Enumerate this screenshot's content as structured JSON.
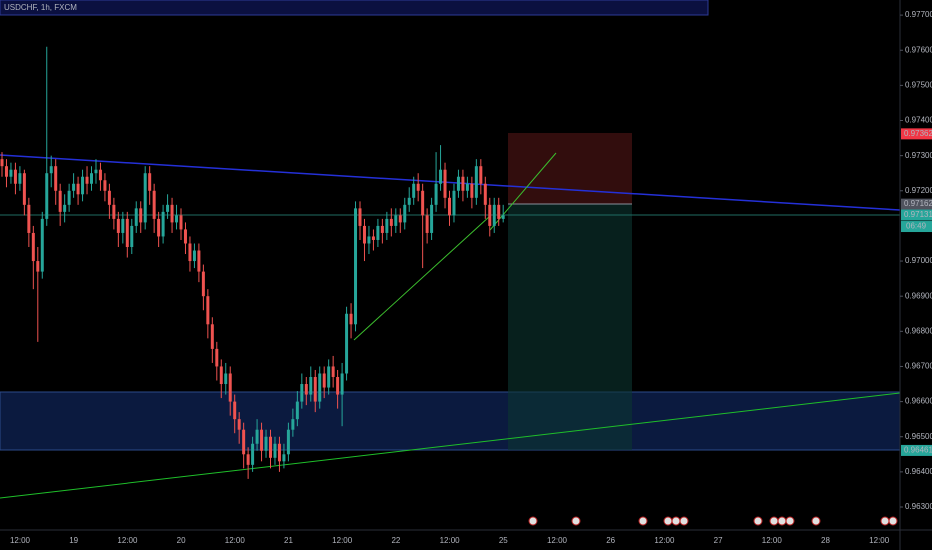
{
  "chart_data": {
    "type": "candlestick",
    "title": "USDCHF, 1h, FXCM",
    "ylim": [
      0.96263,
      0.97743
    ],
    "yticks": [
      {
        "value": 0.977,
        "label": "0.97700"
      },
      {
        "value": 0.976,
        "label": "0.97600"
      },
      {
        "value": 0.975,
        "label": "0.97500"
      },
      {
        "value": 0.974,
        "label": "0.97400"
      },
      {
        "value": 0.973,
        "label": "0.97300"
      },
      {
        "value": 0.972,
        "label": "0.97200"
      },
      {
        "value": 0.97,
        "label": "0.97000"
      },
      {
        "value": 0.969,
        "label": "0.96900"
      },
      {
        "value": 0.968,
        "label": "0.96800"
      },
      {
        "value": 0.967,
        "label": "0.96700"
      },
      {
        "value": 0.966,
        "label": "0.96600"
      },
      {
        "value": 0.965,
        "label": "0.96500"
      },
      {
        "value": 0.964,
        "label": "0.96400"
      },
      {
        "value": 0.963,
        "label": "0.96300"
      }
    ],
    "categories": [
      "12:00",
      "19",
      "12:00",
      "20",
      "12:00",
      "21",
      "12:00",
      "22",
      "12:00",
      "25",
      "12:00",
      "26",
      "12:00",
      "27",
      "12:00",
      "28",
      "12:00"
    ],
    "up_color": "#26a69a",
    "down_color": "#ef5350",
    "price_labels": [
      {
        "value": 0.97362,
        "color": "#f23645"
      },
      {
        "value": 0.97162,
        "color": "#50535e"
      },
      {
        "value": 0.97131,
        "color": "#26a69a"
      },
      {
        "value": 0.96461,
        "color": "#26a69a"
      }
    ],
    "countdown": "06:49",
    "candles": [
      [
        0.9729,
        0.9731,
        0.9724,
        0.9727
      ],
      [
        0.9727,
        0.9729,
        0.9721,
        0.9724
      ],
      [
        0.9724,
        0.9728,
        0.9722,
        0.9726
      ],
      [
        0.9726,
        0.9728,
        0.9719,
        0.9722
      ],
      [
        0.9722,
        0.9727,
        0.972,
        0.9725
      ],
      [
        0.9725,
        0.9726,
        0.9713,
        0.9716
      ],
      [
        0.9716,
        0.9718,
        0.9704,
        0.9708
      ],
      [
        0.9708,
        0.971,
        0.9692,
        0.97
      ],
      [
        0.97,
        0.9704,
        0.9677,
        0.9697
      ],
      [
        0.9697,
        0.9714,
        0.9695,
        0.9712
      ],
      [
        0.9712,
        0.9761,
        0.971,
        0.9725
      ],
      [
        0.9725,
        0.973,
        0.9721,
        0.9727
      ],
      [
        0.9727,
        0.9729,
        0.9716,
        0.972
      ],
      [
        0.972,
        0.9722,
        0.971,
        0.9714
      ],
      [
        0.9714,
        0.9719,
        0.9711,
        0.9716
      ],
      [
        0.9716,
        0.9722,
        0.9714,
        0.972
      ],
      [
        0.972,
        0.9725,
        0.9718,
        0.9722
      ],
      [
        0.9722,
        0.9724,
        0.9716,
        0.9719
      ],
      [
        0.9719,
        0.9726,
        0.9717,
        0.9724
      ],
      [
        0.9724,
        0.9727,
        0.9719,
        0.9722
      ],
      [
        0.9722,
        0.9727,
        0.972,
        0.9725
      ],
      [
        0.9725,
        0.9729,
        0.9722,
        0.9726
      ],
      [
        0.9726,
        0.9728,
        0.972,
        0.9723
      ],
      [
        0.9723,
        0.9725,
        0.9717,
        0.972
      ],
      [
        0.972,
        0.9722,
        0.9712,
        0.9716
      ],
      [
        0.9716,
        0.9718,
        0.9709,
        0.9712
      ],
      [
        0.9712,
        0.9714,
        0.9704,
        0.9708
      ],
      [
        0.9708,
        0.9714,
        0.9705,
        0.9712
      ],
      [
        0.9712,
        0.9714,
        0.9701,
        0.9704
      ],
      [
        0.9704,
        0.9712,
        0.9702,
        0.971
      ],
      [
        0.971,
        0.9717,
        0.9708,
        0.9715
      ],
      [
        0.9715,
        0.9717,
        0.9708,
        0.9711
      ],
      [
        0.9711,
        0.9727,
        0.9709,
        0.9725
      ],
      [
        0.9725,
        0.9727,
        0.9716,
        0.972
      ],
      [
        0.972,
        0.9722,
        0.9708,
        0.9712
      ],
      [
        0.9712,
        0.9714,
        0.9704,
        0.9707
      ],
      [
        0.9707,
        0.9716,
        0.9705,
        0.9714
      ],
      [
        0.9714,
        0.9719,
        0.9712,
        0.9716
      ],
      [
        0.9716,
        0.9718,
        0.9708,
        0.9711
      ],
      [
        0.9711,
        0.9716,
        0.9709,
        0.9713
      ],
      [
        0.9713,
        0.9715,
        0.9706,
        0.9709
      ],
      [
        0.9709,
        0.9711,
        0.9702,
        0.9705
      ],
      [
        0.9705,
        0.9707,
        0.9697,
        0.97
      ],
      [
        0.97,
        0.9705,
        0.9698,
        0.9703
      ],
      [
        0.9703,
        0.9705,
        0.9694,
        0.9697
      ],
      [
        0.9697,
        0.9699,
        0.9686,
        0.969
      ],
      [
        0.969,
        0.9692,
        0.9678,
        0.9682
      ],
      [
        0.9682,
        0.9684,
        0.9671,
        0.9675
      ],
      [
        0.9675,
        0.9677,
        0.9666,
        0.967
      ],
      [
        0.967,
        0.9672,
        0.9661,
        0.9665
      ],
      [
        0.9665,
        0.9671,
        0.9662,
        0.9668
      ],
      [
        0.9668,
        0.967,
        0.9656,
        0.966
      ],
      [
        0.966,
        0.9662,
        0.9651,
        0.9655
      ],
      [
        0.9655,
        0.9657,
        0.9648,
        0.9652
      ],
      [
        0.9652,
        0.9654,
        0.9641,
        0.9645
      ],
      [
        0.9645,
        0.9647,
        0.9638,
        0.9642
      ],
      [
        0.9642,
        0.965,
        0.964,
        0.9648
      ],
      [
        0.9648,
        0.9655,
        0.9646,
        0.9652
      ],
      [
        0.9652,
        0.9654,
        0.9643,
        0.9646
      ],
      [
        0.9646,
        0.9652,
        0.9644,
        0.965
      ],
      [
        0.965,
        0.9652,
        0.9641,
        0.9644
      ],
      [
        0.9644,
        0.965,
        0.9642,
        0.9648
      ],
      [
        0.9648,
        0.965,
        0.964,
        0.9643
      ],
      [
        0.9643,
        0.9648,
        0.9641,
        0.9645
      ],
      [
        0.9645,
        0.9654,
        0.9643,
        0.9652
      ],
      [
        0.9652,
        0.9658,
        0.965,
        0.9655
      ],
      [
        0.9655,
        0.9663,
        0.9653,
        0.966
      ],
      [
        0.966,
        0.9668,
        0.9658,
        0.9665
      ],
      [
        0.9665,
        0.9667,
        0.9659,
        0.9662
      ],
      [
        0.9662,
        0.967,
        0.966,
        0.9667
      ],
      [
        0.9667,
        0.9669,
        0.9657,
        0.966
      ],
      [
        0.966,
        0.967,
        0.9658,
        0.9668
      ],
      [
        0.9668,
        0.967,
        0.9661,
        0.9664
      ],
      [
        0.9664,
        0.9672,
        0.9662,
        0.967
      ],
      [
        0.967,
        0.9673,
        0.9664,
        0.9667
      ],
      [
        0.9667,
        0.9669,
        0.9658,
        0.9662
      ],
      [
        0.9662,
        0.9671,
        0.9653,
        0.9668
      ],
      [
        0.9668,
        0.9687,
        0.9666,
        0.9685
      ],
      [
        0.9685,
        0.9688,
        0.9678,
        0.9682
      ],
      [
        0.9682,
        0.9717,
        0.968,
        0.9715
      ],
      [
        0.9715,
        0.9717,
        0.9706,
        0.971
      ],
      [
        0.971,
        0.9712,
        0.97,
        0.9705
      ],
      [
        0.9705,
        0.971,
        0.9702,
        0.9707
      ],
      [
        0.9707,
        0.9709,
        0.9703,
        0.9706
      ],
      [
        0.9706,
        0.9712,
        0.9704,
        0.971
      ],
      [
        0.971,
        0.9712,
        0.9705,
        0.9708
      ],
      [
        0.9708,
        0.9714,
        0.9706,
        0.9712
      ],
      [
        0.9712,
        0.9715,
        0.9707,
        0.971
      ],
      [
        0.971,
        0.9715,
        0.9708,
        0.9713
      ],
      [
        0.9713,
        0.9715,
        0.9708,
        0.9711
      ],
      [
        0.9711,
        0.9718,
        0.9709,
        0.9716
      ],
      [
        0.9716,
        0.9721,
        0.9714,
        0.9718
      ],
      [
        0.9718,
        0.9724,
        0.9716,
        0.9722
      ],
      [
        0.9722,
        0.9725,
        0.9717,
        0.972
      ],
      [
        0.972,
        0.9722,
        0.9698,
        0.9713
      ],
      [
        0.9713,
        0.9715,
        0.9705,
        0.9708
      ],
      [
        0.9708,
        0.9718,
        0.9706,
        0.9716
      ],
      [
        0.9716,
        0.9731,
        0.9714,
        0.9722
      ],
      [
        0.9722,
        0.9733,
        0.972,
        0.9726
      ],
      [
        0.9726,
        0.9728,
        0.9715,
        0.9718
      ],
      [
        0.9718,
        0.972,
        0.971,
        0.9713
      ],
      [
        0.9713,
        0.9722,
        0.9711,
        0.972
      ],
      [
        0.972,
        0.9726,
        0.9718,
        0.9724
      ],
      [
        0.9724,
        0.9726,
        0.9717,
        0.972
      ],
      [
        0.972,
        0.9724,
        0.9718,
        0.9722
      ],
      [
        0.9722,
        0.9724,
        0.9715,
        0.9718
      ],
      [
        0.9718,
        0.9729,
        0.9716,
        0.9727
      ],
      [
        0.9727,
        0.9729,
        0.9719,
        0.9722
      ],
      [
        0.9722,
        0.9724,
        0.9712,
        0.9716
      ],
      [
        0.9716,
        0.9718,
        0.9707,
        0.971
      ],
      [
        0.971,
        0.9718,
        0.9708,
        0.9716
      ],
      [
        0.9716,
        0.9718,
        0.971,
        0.9712
      ],
      [
        0.9712,
        0.9716,
        0.9711,
        0.9713
      ]
    ]
  }
}
